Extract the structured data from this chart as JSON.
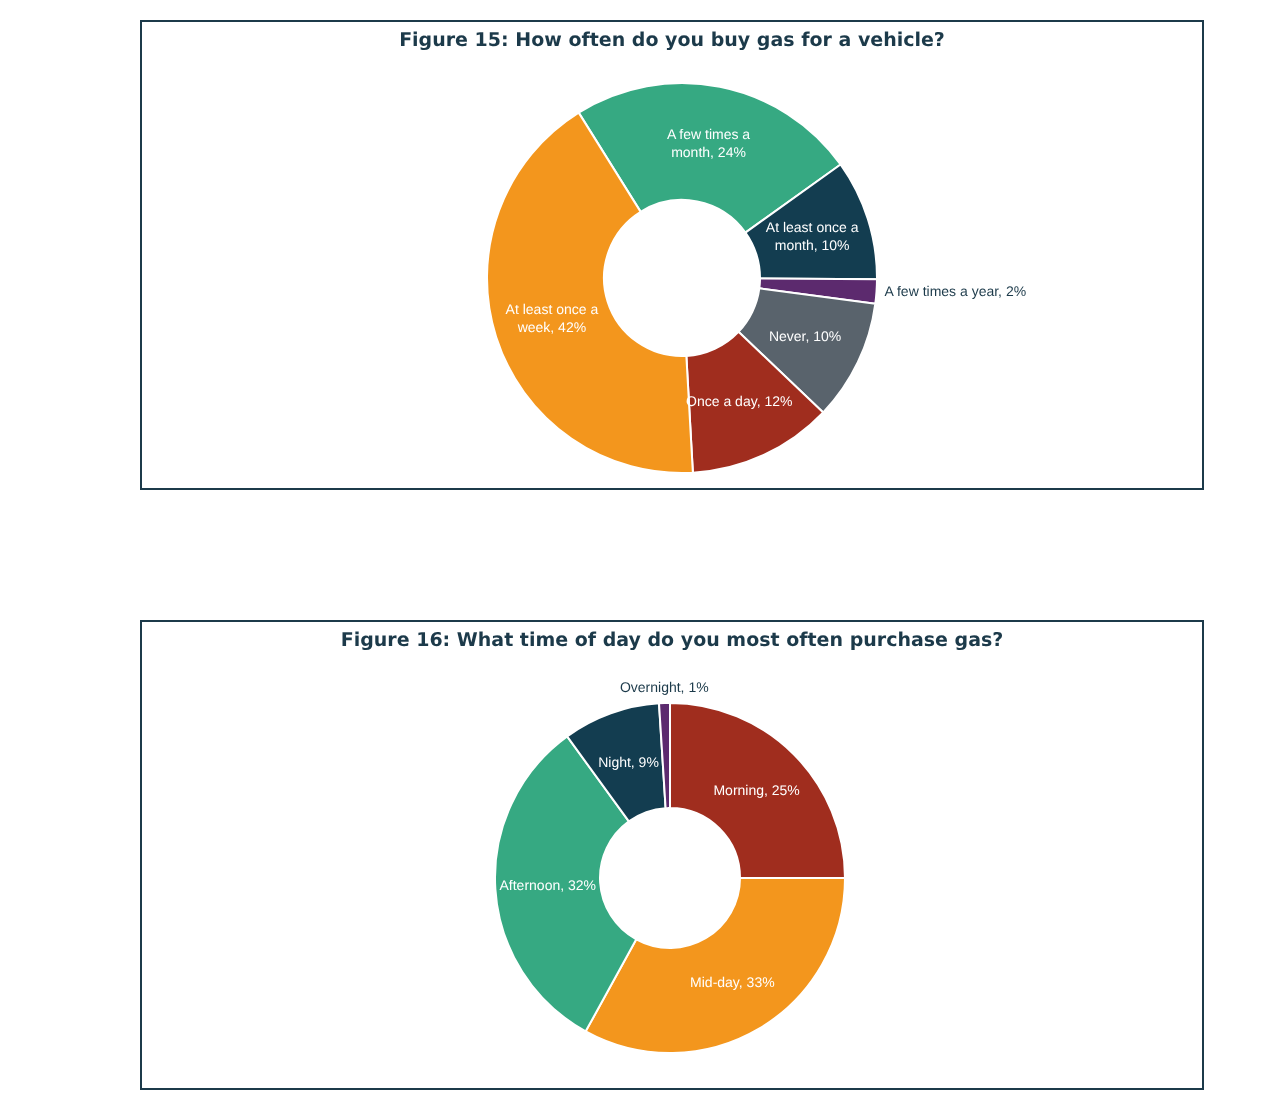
{
  "chart_data": [
    {
      "type": "donut",
      "title": "Figure 15: How often do you buy gas for a vehicle?",
      "categories": [
        "A few times a month",
        "At least once a month",
        "A few times a year",
        "Never",
        "Once a day",
        "At least once a week"
      ],
      "values": [
        24,
        10,
        2,
        10,
        12,
        42
      ],
      "value_labels": [
        "24%",
        "10%",
        "2%",
        "10%",
        "12%",
        "42%"
      ],
      "colors": [
        "#36a982",
        "#133d50",
        "#5c2a6e",
        "#59636c",
        "#a02d1e",
        "#f3961d"
      ],
      "legend": false
    },
    {
      "type": "donut",
      "title": "Figure 16: What time of day do you most often purchase gas?",
      "categories": [
        "Morning",
        "Mid-day",
        "Afternoon",
        "Night",
        "Overnight"
      ],
      "values": [
        25,
        33,
        32,
        9,
        1
      ],
      "value_labels": [
        "25%",
        "33%",
        "32%",
        "9%",
        "1%"
      ],
      "colors": [
        "#a02d1e",
        "#f3961d",
        "#36a982",
        "#133d50",
        "#5c2a6e"
      ],
      "legend": false
    }
  ]
}
